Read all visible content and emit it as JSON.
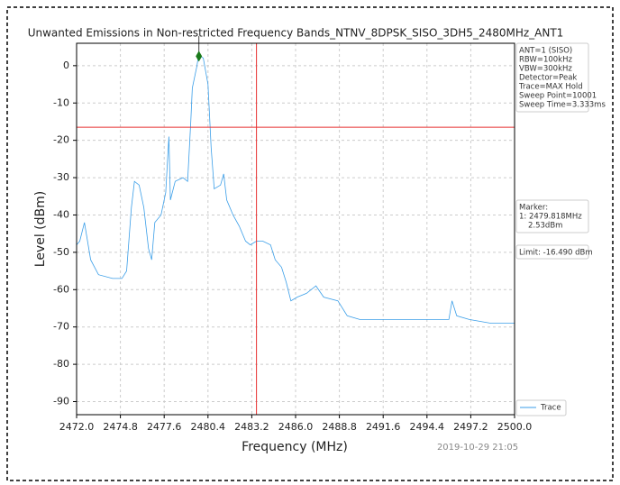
{
  "chart_data": {
    "type": "line",
    "title": "Unwanted Emissions in Non-restricted Frequency Bands_NTNV_8DPSK_SISO_3DH5_2480MHz_ANT1",
    "x_label": "Frequency (MHz)",
    "y_label": "Level (dBm)",
    "timestamp": "2019-10-29 21:05",
    "x": [
      2472.0,
      2472.2,
      2472.5,
      2472.9,
      2473.4,
      2474.3,
      2474.9,
      2475.2,
      2475.5,
      2475.7,
      2476.0,
      2476.3,
      2476.6,
      2476.8,
      2477.0,
      2477.4,
      2477.7,
      2477.9,
      2478.0,
      2478.3,
      2478.8,
      2479.1,
      2479.3,
      2479.4,
      2479.7,
      2479.8,
      2480.1,
      2480.4,
      2480.6,
      2480.8,
      2481.2,
      2481.4,
      2481.6,
      2482.0,
      2482.4,
      2482.8,
      2483.1,
      2483.5,
      2483.9,
      2484.4,
      2484.7,
      2485.1,
      2485.4,
      2485.7,
      2486.1,
      2486.7,
      2487.3,
      2487.8,
      2488.7,
      2489.3,
      2490.1,
      2491.9,
      2494.2,
      2495.8,
      2496.0,
      2496.3,
      2497.1,
      2498.5,
      2500.0
    ],
    "series": [
      {
        "name": "Trace",
        "color": "#3a9ee8",
        "values": [
          -48,
          -47,
          -42,
          -52,
          -56,
          -57,
          -57,
          -55,
          -38,
          -31,
          -32,
          -38,
          -49,
          -52,
          -42,
          -40,
          -34,
          -19,
          -36,
          -31,
          -30,
          -31,
          -15,
          -6,
          0,
          3,
          2,
          -5,
          -22,
          -33,
          -32,
          -29,
          -36,
          -40,
          -43,
          -47,
          -48,
          -47,
          -47,
          -48,
          -52,
          -54,
          -58,
          -63,
          -62,
          -61,
          -59,
          -62,
          -63,
          -67,
          -68,
          -68,
          -68,
          -68,
          -63,
          -67,
          -68,
          -69,
          -69
        ]
      }
    ],
    "xlim": [
      2472.0,
      2500.0
    ],
    "xticks": [
      {
        "value": 2472.0,
        "label": "2472.0"
      },
      {
        "value": 2474.8,
        "label": "2474.8"
      },
      {
        "value": 2477.6,
        "label": "2477.6"
      },
      {
        "value": 2480.4,
        "label": "2480.4"
      },
      {
        "value": 2483.2,
        "label": "2483.2"
      },
      {
        "value": 2486.0,
        "label": "2486.0"
      },
      {
        "value": 2488.8,
        "label": "2488.8"
      },
      {
        "value": 2491.6,
        "label": "2491.6"
      },
      {
        "value": 2494.4,
        "label": "2494.4"
      },
      {
        "value": 2497.2,
        "label": "2497.2"
      },
      {
        "value": 2500.0,
        "label": "2500.0"
      }
    ],
    "ylim": [
      -93.5,
      6
    ],
    "yticks": [
      0,
      -10,
      -20,
      -30,
      -40,
      -50,
      -60,
      -70,
      -80,
      -90
    ],
    "grid": true,
    "limit": -16.49,
    "limit_color": "#e83030",
    "band_edge": 2483.5,
    "marker": {
      "x": 2479.818,
      "y": 2.53,
      "color": "#1a7a1a"
    },
    "settings_lines": [
      "ANT=1 (SISO)",
      "RBW=100kHz",
      "VBW=300kHz",
      "Detector=Peak",
      "Trace=MAX Hold",
      "Sweep Point=10001",
      "Sweep Time=3.333ms"
    ],
    "marker_lines": [
      "Marker:",
      "1: 2479.818MHz",
      "2.53dBm"
    ],
    "limit_label": "Limit: -16.490 dBm"
  }
}
